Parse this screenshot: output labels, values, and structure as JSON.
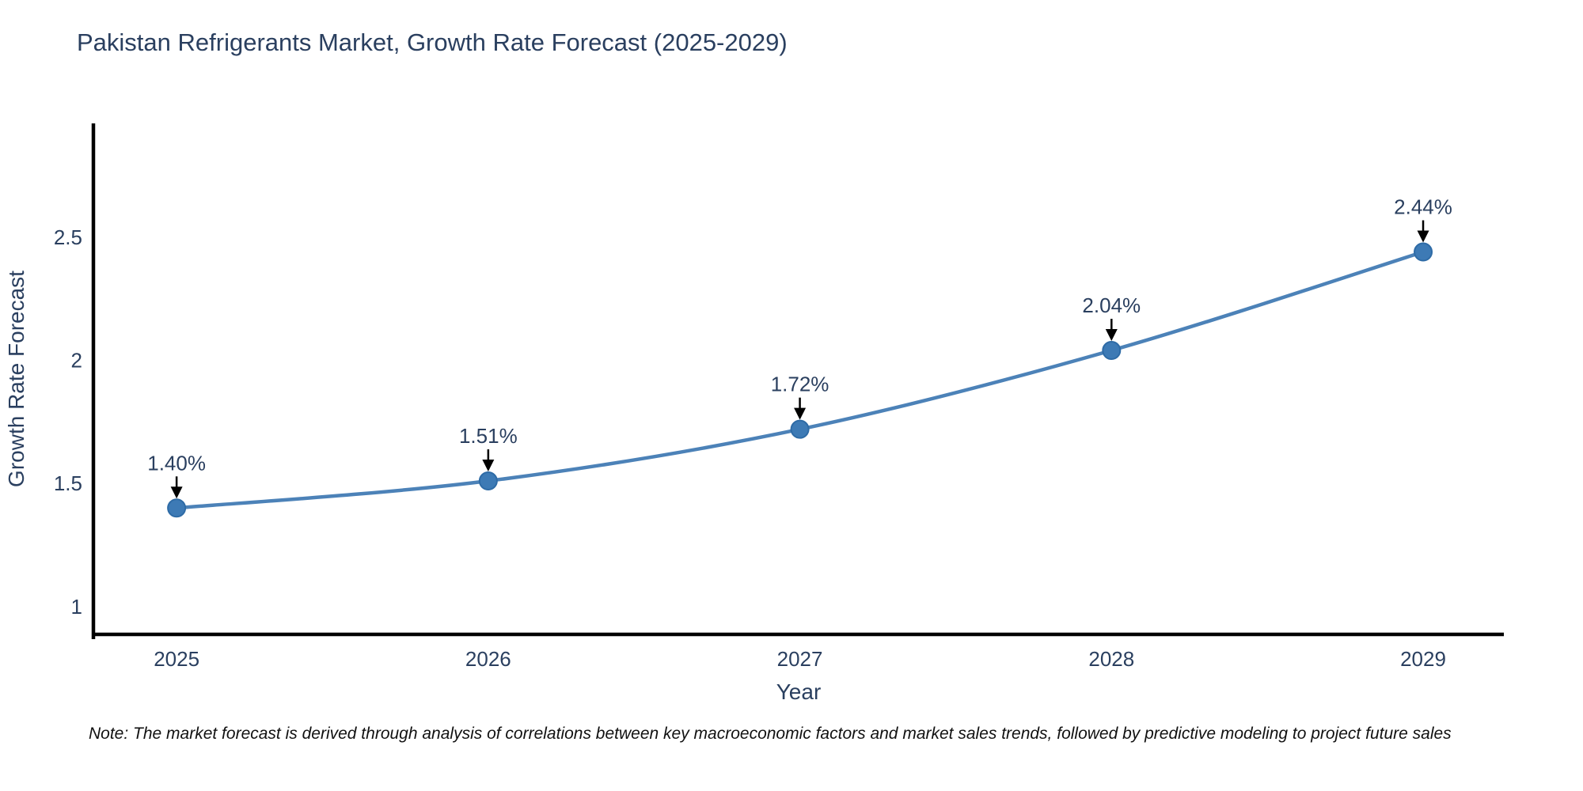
{
  "page": {
    "note": "Note: The market forecast is derived through analysis of correlations between key macroeconomic factors and market sales trends, followed by predictive modeling to project future sales"
  },
  "chart_data": {
    "type": "line",
    "title": "Pakistan Refrigerants Market, Growth Rate Forecast (2025-2029)",
    "xlabel": "Year",
    "ylabel": "Growth Rate Forecast",
    "x": [
      2025,
      2026,
      2027,
      2028,
      2029
    ],
    "categories": [
      "2025",
      "2026",
      "2027",
      "2028",
      "2029"
    ],
    "series": [
      {
        "name": "Growth Rate Forecast",
        "values": [
          1.4,
          1.51,
          1.72,
          2.04,
          2.44
        ]
      }
    ],
    "point_labels": [
      "1.40%",
      "1.51%",
      "1.72%",
      "2.04%",
      "2.44%"
    ],
    "yticks": [
      "1",
      "1.5",
      "2",
      "2.5"
    ],
    "ytick_values": [
      1,
      1.5,
      2,
      2.5
    ],
    "ylim": [
      0.887,
      2.962
    ],
    "xlim_years": [
      2024.733,
      2029.259
    ],
    "grid": false,
    "legend": "none",
    "line_shape": "spline",
    "annotation_arrows": true,
    "colors": {
      "line": "#4c82b8",
      "marker_fill": "#3d7ab5",
      "marker_edge": "#2e6ba6",
      "axis": "#000000",
      "text": "#2a3f5f",
      "arrow": "#000000",
      "background": "#ffffff"
    }
  }
}
